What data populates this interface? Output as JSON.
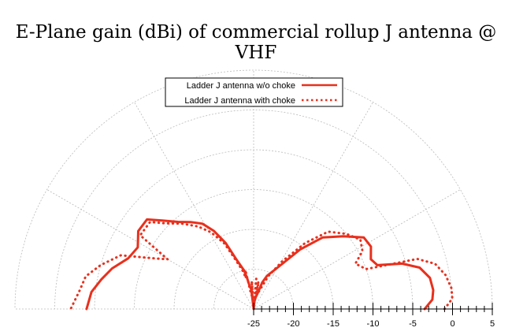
{
  "chart_data": {
    "type": "polar-line",
    "title": "E-Plane gain (dBi) of commercial rollup J antenna @ VHF",
    "r_axis": {
      "min": -25,
      "max": 5,
      "ticks": [
        "-25",
        "-20",
        "-15",
        "-10",
        "-5",
        "0",
        "5"
      ]
    },
    "angle_range_deg": [
      0,
      180
    ],
    "grid": true,
    "legend_position": "top-center",
    "series": [
      {
        "name": "Ladder J antenna w/o choke",
        "style": "solid",
        "color": "#e8301d",
        "points": [
          [
            0,
            -3.5
          ],
          [
            3,
            -2.5
          ],
          [
            6,
            -2.3
          ],
          [
            10,
            -2.5
          ],
          [
            14,
            -3.5
          ],
          [
            17,
            -5.5
          ],
          [
            19.5,
            -8.5
          ],
          [
            23,
            -9
          ],
          [
            28,
            -8.3
          ],
          [
            33,
            -8.5
          ],
          [
            39,
            -10.5
          ],
          [
            46,
            -12.5
          ],
          [
            52,
            -15.5
          ],
          [
            60,
            -19
          ],
          [
            68,
            -20.5
          ],
          [
            72,
            -21.5
          ],
          [
            76,
            -23
          ],
          [
            80,
            -23.5
          ],
          [
            84,
            -24
          ],
          [
            86,
            -24.5
          ],
          [
            88,
            -25
          ],
          [
            90,
            -25
          ],
          [
            93,
            -24
          ],
          [
            95,
            -24.7
          ],
          [
            97,
            -22.5
          ],
          [
            100,
            -22
          ],
          [
            102,
            -21
          ],
          [
            104,
            -20
          ],
          [
            106,
            -19.5
          ],
          [
            109,
            -18.5
          ],
          [
            113,
            -16
          ],
          [
            117,
            -14
          ],
          [
            121,
            -12.5
          ],
          [
            126,
            -11.5
          ],
          [
            131,
            -10.5
          ],
          [
            136,
            -9
          ],
          [
            140,
            -7.5
          ],
          [
            146,
            -7.5
          ],
          [
            152,
            -8.5
          ],
          [
            158,
            -8
          ],
          [
            164,
            -6.5
          ],
          [
            169,
            -5.5
          ],
          [
            174,
            -4.5
          ],
          [
            180,
            -4
          ]
        ]
      },
      {
        "name": "Ladder J antenna with choke",
        "style": "dotted",
        "color": "#e8301d",
        "points": [
          [
            0,
            -1
          ],
          [
            3,
            0
          ],
          [
            6,
            0
          ],
          [
            10,
            -0.5
          ],
          [
            14,
            -1.5
          ],
          [
            17,
            -3.5
          ],
          [
            19.5,
            -10
          ],
          [
            24,
            -11
          ],
          [
            28,
            -9.5
          ],
          [
            33,
            -9
          ],
          [
            39,
            -10
          ],
          [
            46,
            -11.5
          ],
          [
            52,
            -14.5
          ],
          [
            59,
            -18
          ],
          [
            66,
            -20.5
          ],
          [
            72,
            -22.5
          ],
          [
            77,
            -23.2
          ],
          [
            80,
            -21.5
          ],
          [
            82,
            -23.8
          ],
          [
            85,
            -21.2
          ],
          [
            86,
            -24.5
          ],
          [
            88,
            -25
          ],
          [
            90,
            -25
          ],
          [
            92,
            -24.4
          ],
          [
            94,
            -21.5
          ],
          [
            96,
            -23.5
          ],
          [
            100,
            -23
          ],
          [
            102,
            -20
          ],
          [
            104,
            -21
          ],
          [
            106,
            -20
          ],
          [
            110,
            -18.5
          ],
          [
            114,
            -16
          ],
          [
            119,
            -14
          ],
          [
            124,
            -12.5
          ],
          [
            130,
            -11
          ],
          [
            136,
            -9.5
          ],
          [
            140,
            -8
          ],
          [
            147,
            -8
          ],
          [
            150,
            -12.5
          ],
          [
            153,
            -11
          ],
          [
            158,
            -7
          ],
          [
            164,
            -5
          ],
          [
            169,
            -3.5
          ],
          [
            174,
            -3
          ],
          [
            180,
            -2
          ]
        ]
      }
    ]
  }
}
